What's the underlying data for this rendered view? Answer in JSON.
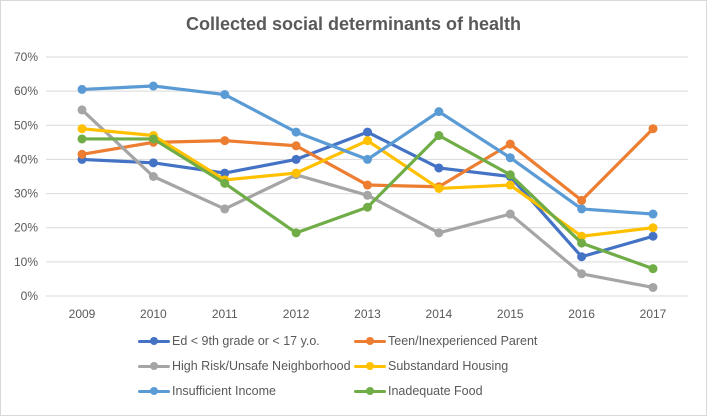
{
  "chart_data": {
    "type": "line",
    "title": "Collected social determinants of health",
    "xlabel": "",
    "ylabel": "",
    "x": [
      "2009",
      "2010",
      "2011",
      "2012",
      "2013",
      "2014",
      "2015",
      "2016",
      "2017"
    ],
    "ylim": [
      0,
      0.7
    ],
    "yticks": [
      "0%",
      "10%",
      "20%",
      "30%",
      "40%",
      "50%",
      "60%",
      "70%"
    ],
    "grid": true,
    "legend_position": "bottom",
    "series": [
      {
        "name": "Ed < 9th grade or < 17 y.o.",
        "color": "#4472c4",
        "values": [
          0.4,
          0.39,
          0.36,
          0.4,
          0.48,
          0.375,
          0.35,
          0.115,
          0.175
        ]
      },
      {
        "name": "Teen/Inexperienced Parent",
        "color": "#ed7d31",
        "values": [
          0.415,
          0.45,
          0.455,
          0.44,
          0.325,
          0.32,
          0.445,
          0.28,
          0.49
        ]
      },
      {
        "name": "High Risk/Unsafe Neighborhood",
        "color": "#a5a5a5",
        "values": [
          0.545,
          0.35,
          0.255,
          0.355,
          0.295,
          0.185,
          0.24,
          0.065,
          0.025
        ]
      },
      {
        "name": "Substandard Housing",
        "color": "#ffc000",
        "values": [
          0.49,
          0.47,
          0.34,
          0.36,
          0.455,
          0.315,
          0.325,
          0.175,
          0.2
        ]
      },
      {
        "name": "Insufficient Income",
        "color": "#5b9bd5",
        "values": [
          0.605,
          0.615,
          0.59,
          0.48,
          0.4,
          0.54,
          0.405,
          0.255,
          0.24
        ]
      },
      {
        "name": "Inadequate Food",
        "color": "#70ad47",
        "values": [
          0.46,
          0.46,
          0.33,
          0.185,
          0.26,
          0.47,
          0.355,
          0.155,
          0.08
        ]
      }
    ]
  }
}
